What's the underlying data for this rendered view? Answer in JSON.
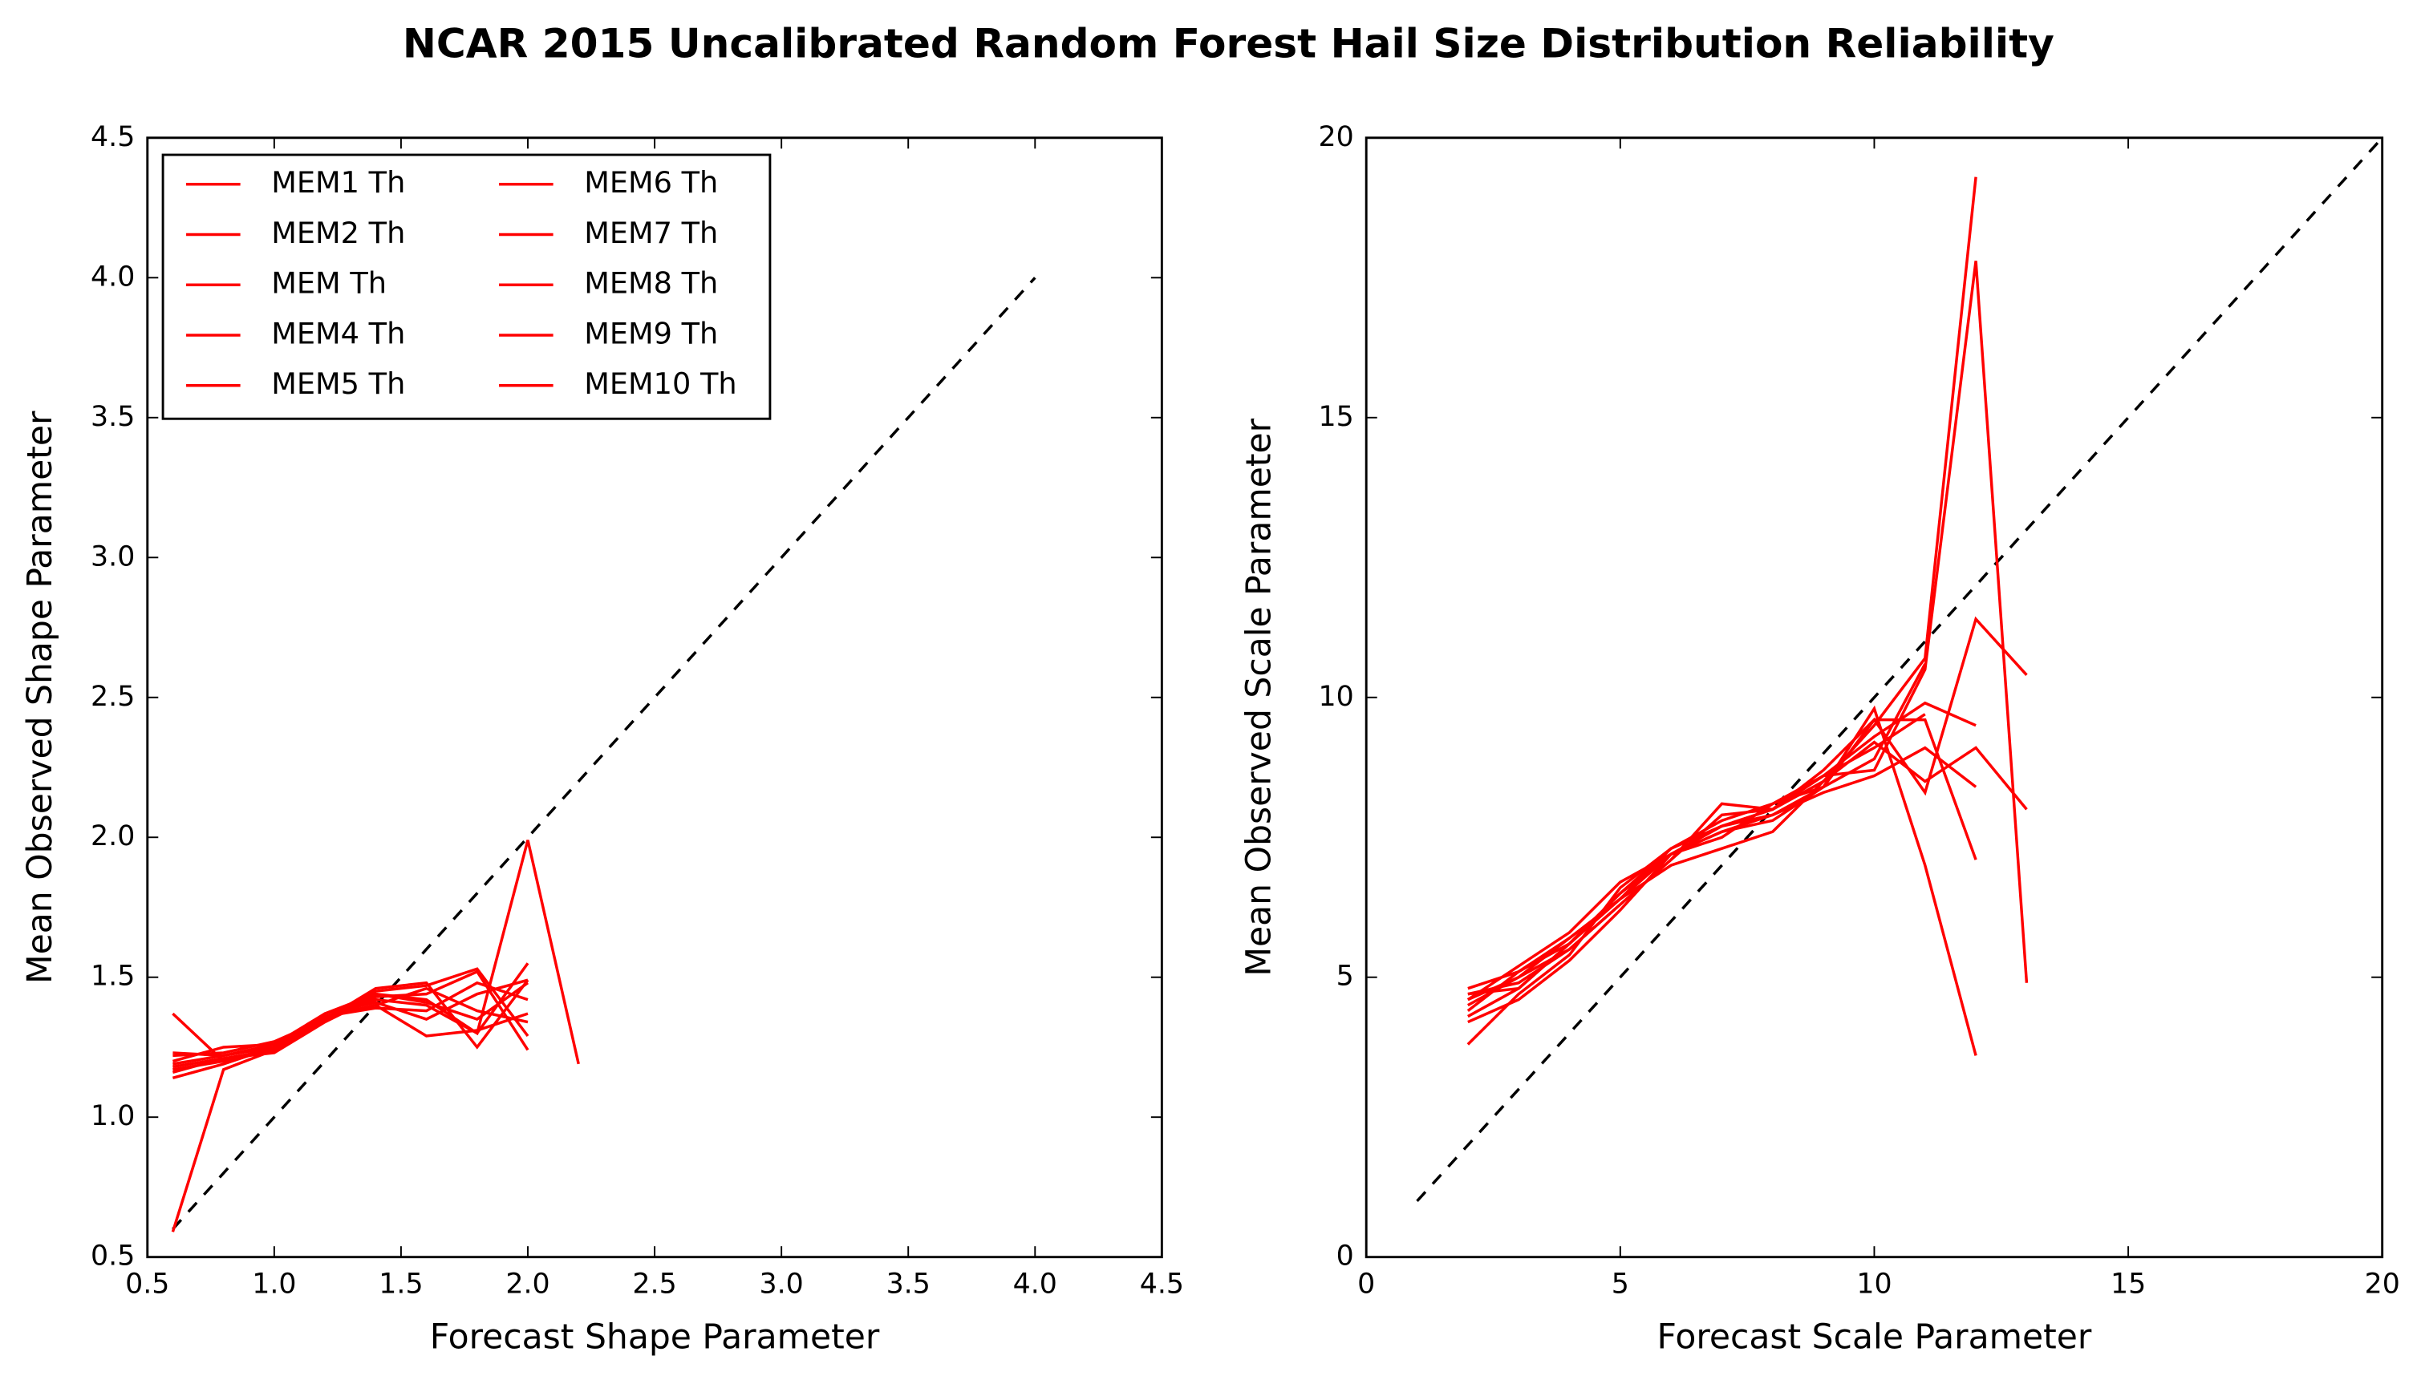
{
  "title": "NCAR 2015 Uncalibrated Random Forest Hail Size Distribution Reliability",
  "chart_data": [
    {
      "type": "line",
      "xlabel": "Forecast Shape Parameter",
      "ylabel": "Mean Observed Shape Parameter",
      "xlim": [
        0.5,
        4.5
      ],
      "ylim": [
        0.5,
        4.5
      ],
      "xticks": [
        0.5,
        {
          "value": 1,
          "label": "1.0"
        },
        1.5,
        {
          "value": 2,
          "label": "2.0"
        },
        2.5,
        {
          "value": 3,
          "label": "3.0"
        },
        3.5,
        {
          "value": 4,
          "label": "4.0"
        },
        4.5
      ],
      "yticks": [
        0.5,
        {
          "value": 1,
          "label": "1.0"
        },
        1.5,
        {
          "value": 2,
          "label": "2.0"
        },
        2.5,
        {
          "value": 3,
          "label": "3.0"
        },
        3.5,
        {
          "value": 4,
          "label": "4.0"
        },
        4.5
      ],
      "legend": "upper left",
      "legend_columns": 2,
      "reference_line": {
        "color": "#000000",
        "x": [
          0.6,
          4.0
        ],
        "values": [
          0.6,
          4.0
        ]
      },
      "x": [
        0.6,
        0.8,
        1.0,
        1.2,
        1.4,
        1.6,
        1.8,
        2.0,
        2.2
      ],
      "series": [
        {
          "name": "MEM1 Th",
          "color": "#ff0000",
          "values": [
            1.37,
            1.2,
            1.24,
            1.35,
            1.44,
            1.42,
            1.3,
            1.55,
            null
          ]
        },
        {
          "name": "MEM2 Th",
          "color": "#ff0000",
          "values": [
            1.23,
            1.22,
            1.25,
            1.35,
            1.46,
            1.48,
            1.25,
            1.49,
            null
          ]
        },
        {
          "name": "MEM Th",
          "color": "#ff0000",
          "values": [
            0.59,
            1.17,
            1.24,
            1.35,
            1.42,
            1.4,
            1.3,
            1.99,
            1.19
          ]
        },
        {
          "name": "MEM4 Th",
          "color": "#ff0000",
          "values": [
            1.2,
            1.25,
            1.26,
            1.36,
            1.4,
            1.29,
            1.31,
            1.37,
            null
          ]
        },
        {
          "name": "MEM5 Th",
          "color": "#ff0000",
          "values": [
            1.16,
            1.21,
            1.23,
            1.34,
            1.43,
            1.44,
            1.52,
            1.24,
            null
          ]
        },
        {
          "name": "MEM6 Th",
          "color": "#ff0000",
          "values": [
            1.14,
            1.19,
            1.25,
            1.37,
            1.41,
            1.35,
            1.44,
            1.49,
            null
          ]
        },
        {
          "name": "MEM7 Th",
          "color": "#ff0000",
          "values": [
            1.18,
            1.21,
            1.24,
            1.36,
            1.39,
            1.38,
            1.48,
            1.42,
            null
          ]
        },
        {
          "name": "MEM8 Th",
          "color": "#ff0000",
          "values": [
            1.22,
            1.23,
            1.27,
            1.35,
            1.45,
            1.47,
            1.53,
            1.29,
            null
          ]
        },
        {
          "name": "MEM9 Th",
          "color": "#ff0000",
          "values": [
            1.17,
            1.2,
            1.25,
            1.36,
            1.4,
            1.46,
            1.38,
            1.34,
            null
          ]
        },
        {
          "name": "MEM10 Th",
          "color": "#ff0000",
          "values": [
            1.19,
            1.22,
            1.26,
            1.37,
            1.44,
            1.41,
            1.35,
            1.48,
            null
          ]
        }
      ]
    },
    {
      "type": "line",
      "xlabel": "Forecast Scale Parameter",
      "ylabel": "Mean Observed Scale Parameter",
      "xlim": [
        0,
        20
      ],
      "ylim": [
        0,
        20
      ],
      "xticks": [
        0,
        5,
        10,
        15,
        20
      ],
      "yticks": [
        0,
        5,
        10,
        15,
        20
      ],
      "reference_line": {
        "color": "#000000",
        "x": [
          1,
          20
        ],
        "values": [
          1,
          20
        ]
      },
      "x": [
        2,
        3,
        4,
        5,
        6,
        7,
        8,
        9,
        10,
        11,
        12,
        13
      ],
      "series": [
        {
          "color": "#ff0000",
          "values": [
            4.7,
            4.8,
            5.6,
            6.5,
            7.3,
            7.7,
            8.0,
            8.5,
            9.5,
            10.7,
            19.3,
            null
          ]
        },
        {
          "color": "#ff0000",
          "values": [
            4.5,
            5.0,
            5.5,
            6.3,
            7.1,
            8.1,
            8.0,
            8.6,
            8.7,
            10.5,
            17.8,
            4.9
          ]
        },
        {
          "color": "#ff0000",
          "values": [
            4.8,
            5.1,
            5.7,
            6.4,
            7.2,
            7.6,
            7.9,
            8.4,
            9.6,
            8.3,
            11.4,
            10.4
          ]
        },
        {
          "color": "#ff0000",
          "values": [
            4.2,
            4.6,
            5.3,
            6.2,
            7.2,
            7.5,
            8.1,
            8.4,
            9.8,
            7.0,
            3.6,
            null
          ]
        },
        {
          "color": "#ff0000",
          "values": [
            3.8,
            4.7,
            5.4,
            6.6,
            7.3,
            7.8,
            8.1,
            8.6,
            9.3,
            9.9,
            9.5,
            null
          ]
        },
        {
          "color": "#ff0000",
          "values": [
            4.6,
            5.2,
            5.8,
            6.7,
            7.2,
            7.7,
            7.9,
            8.3,
            8.6,
            9.1,
            8.4,
            null
          ]
        },
        {
          "color": "#ff0000",
          "values": [
            4.4,
            5.1,
            5.6,
            6.4,
            7.0,
            7.3,
            7.6,
            8.5,
            9.2,
            8.5,
            9.1,
            8.0
          ]
        },
        {
          "color": "#ff0000",
          "values": [
            4.7,
            4.9,
            5.5,
            6.3,
            7.1,
            7.9,
            8.0,
            8.7,
            9.6,
            9.6,
            7.1,
            null
          ]
        },
        {
          "color": "#ff0000",
          "values": [
            4.3,
            4.8,
            5.6,
            6.5,
            7.2,
            7.6,
            7.8,
            8.4,
            8.9,
            10.6,
            null,
            null
          ]
        },
        {
          "color": "#ff0000",
          "values": [
            4.6,
            5.0,
            5.7,
            6.4,
            7.3,
            7.7,
            8.0,
            8.6,
            9.1,
            9.7,
            null,
            null
          ]
        }
      ]
    }
  ]
}
